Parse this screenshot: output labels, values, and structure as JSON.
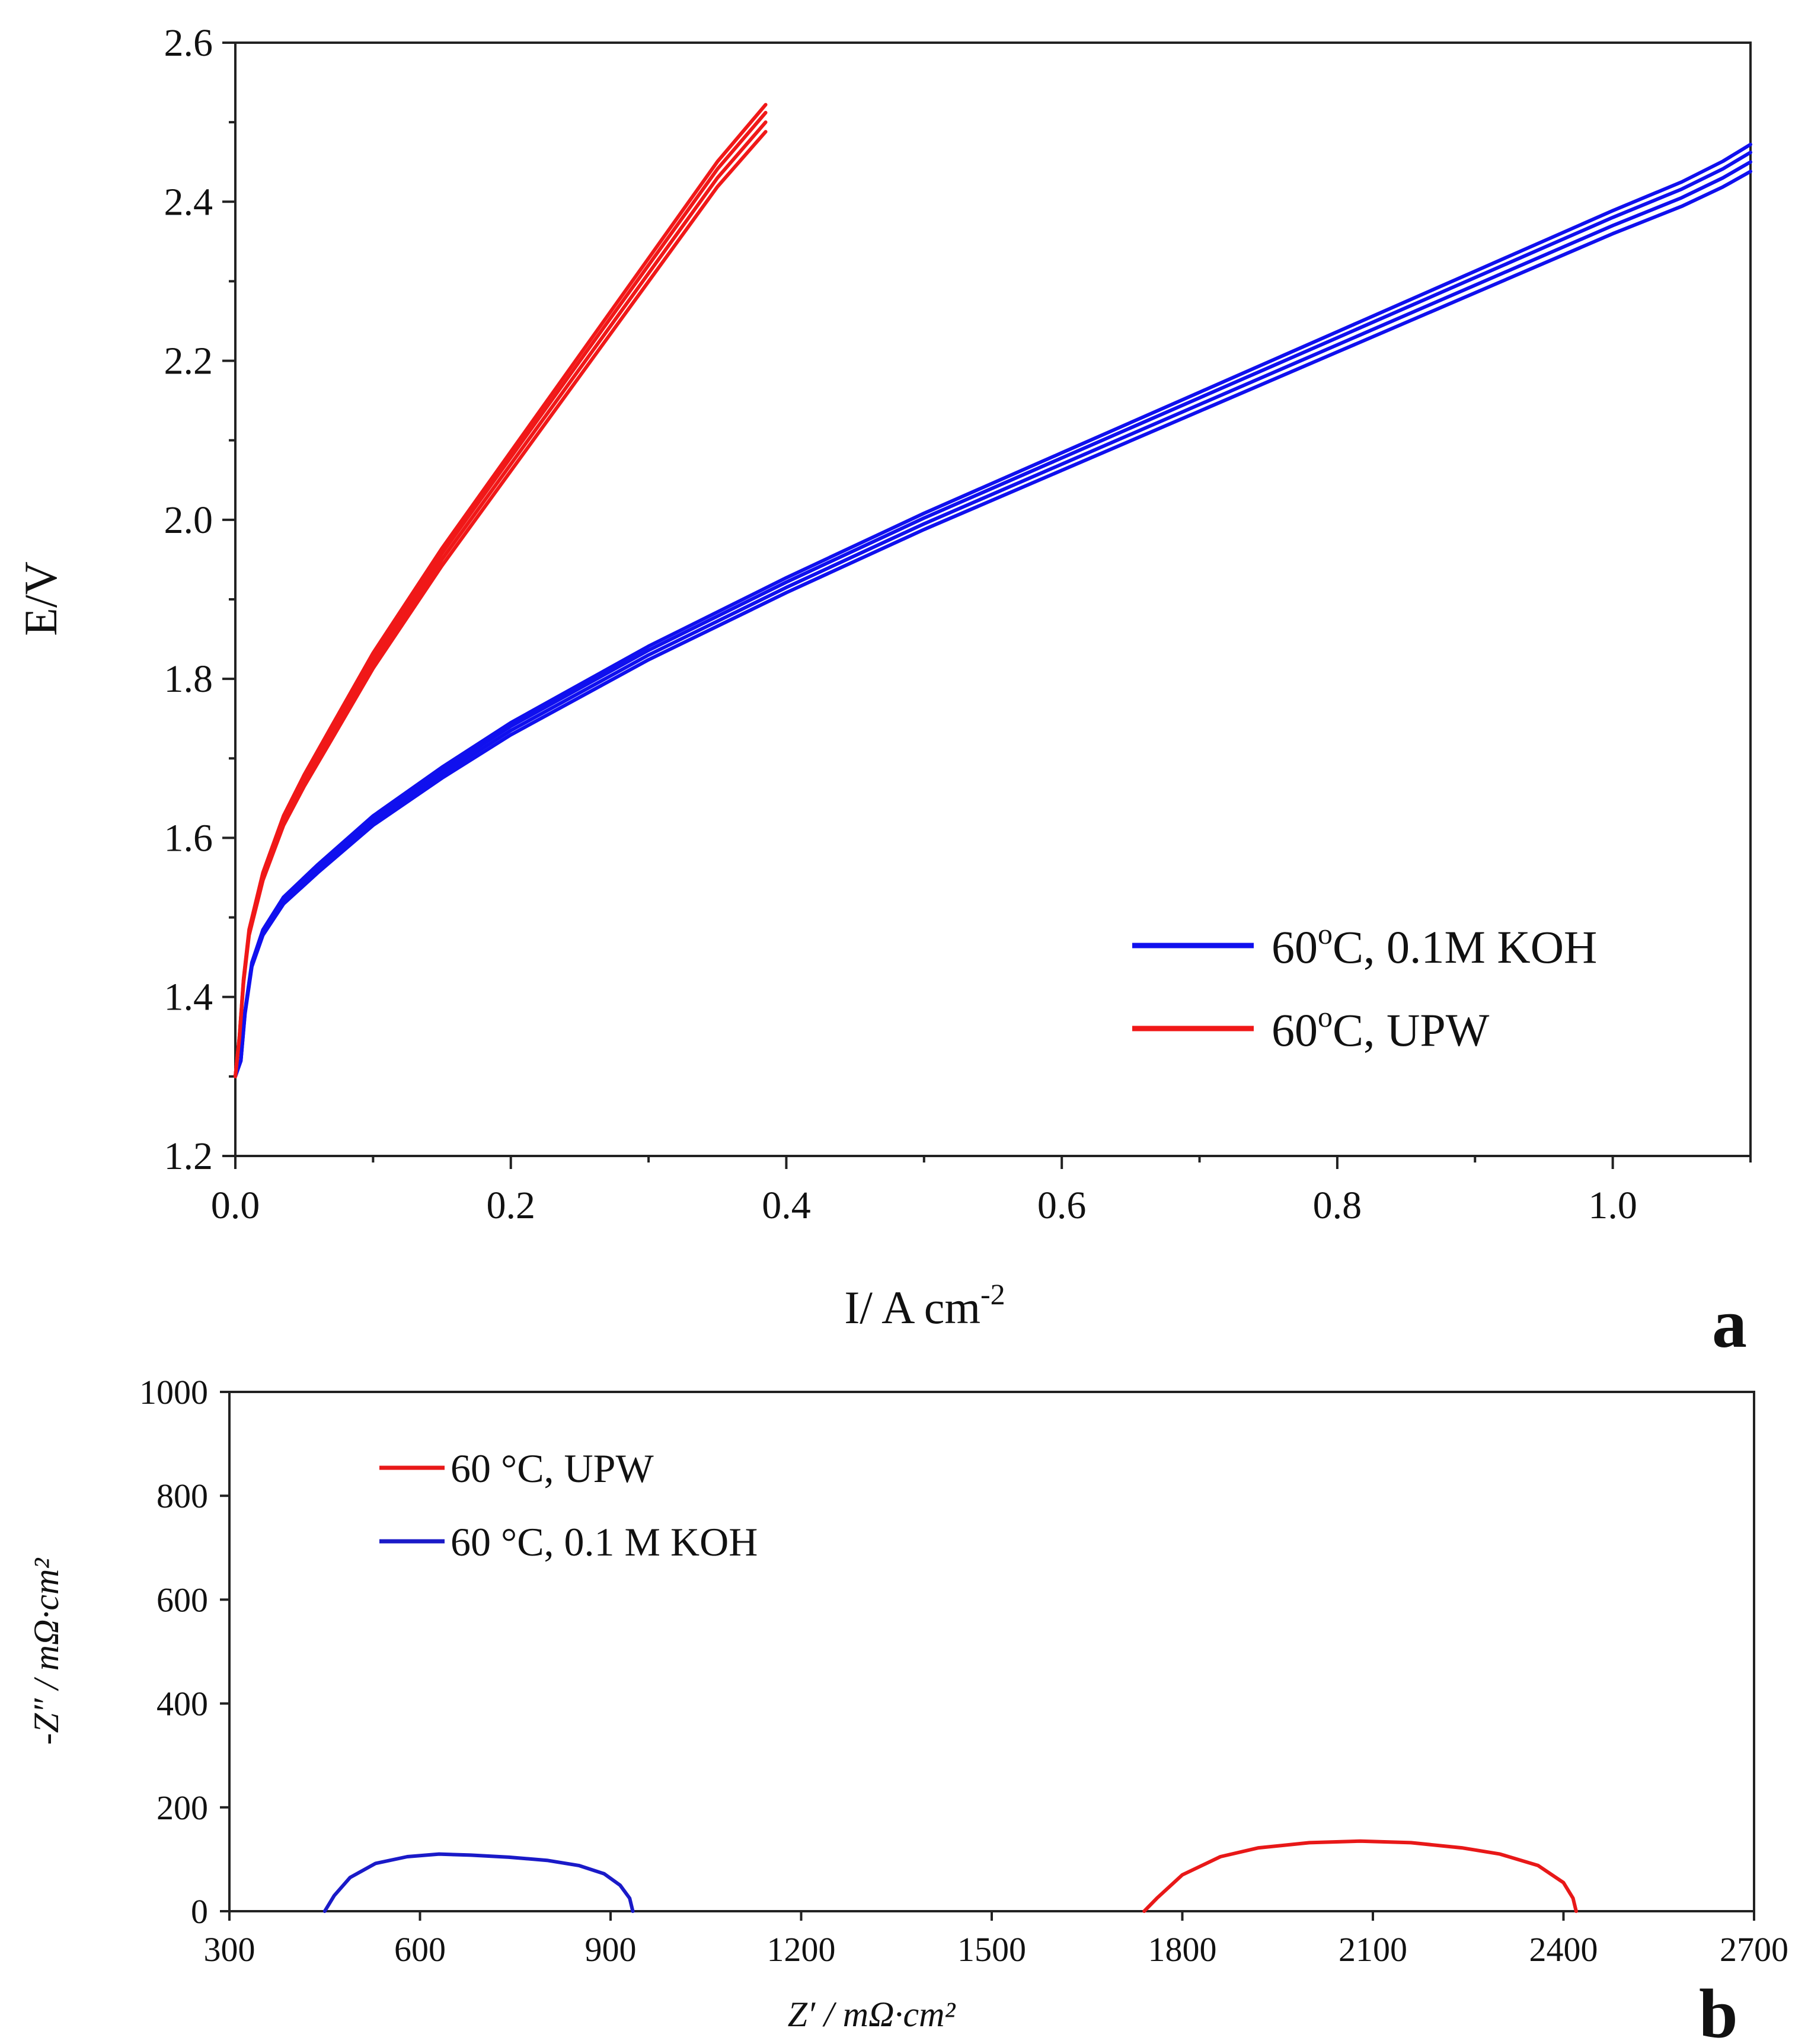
{
  "chart_data": [
    {
      "type": "line",
      "panel_label": "a",
      "xlabel": "I/ A cm",
      "xlabel_superscript": "-2",
      "ylabel": "E/V",
      "xlim": [
        0.0,
        1.1
      ],
      "ylim": [
        1.2,
        2.6
      ],
      "x_ticks": [
        "0.0",
        "0.2",
        "0.4",
        "0.6",
        "0.8",
        "1.0"
      ],
      "x_tick_values": [
        0.0,
        0.2,
        0.4,
        0.6,
        0.8,
        1.0
      ],
      "y_ticks": [
        "1.2",
        "1.4",
        "1.6",
        "1.8",
        "2.0",
        "2.2",
        "2.4",
        "2.6"
      ],
      "y_tick_values": [
        1.2,
        1.4,
        1.6,
        1.8,
        2.0,
        2.2,
        2.4,
        2.6
      ],
      "legend_position": "lower-right",
      "series": [
        {
          "name": "60oC, 0.1M KOH",
          "legend_main": "60",
          "legend_sup": "o",
          "legend_rest": "C, 0.1M KOH",
          "color": "#1010ee",
          "x": [
            0.0,
            0.004,
            0.007,
            0.012,
            0.02,
            0.035,
            0.06,
            0.1,
            0.15,
            0.2,
            0.3,
            0.4,
            0.5,
            0.6,
            0.7,
            0.8,
            0.9,
            1.0,
            1.05,
            1.08,
            1.1
          ],
          "y": [
            1.3,
            1.32,
            1.38,
            1.44,
            1.48,
            1.52,
            1.56,
            1.62,
            1.68,
            1.735,
            1.83,
            1.915,
            1.995,
            2.07,
            2.145,
            2.22,
            2.295,
            2.37,
            2.405,
            2.43,
            2.45
          ]
        },
        {
          "name": "60oC, UPW",
          "legend_main": "60",
          "legend_sup": "o",
          "legend_rest": "C, UPW",
          "color": "#f01818",
          "x": [
            0.0,
            0.003,
            0.006,
            0.01,
            0.02,
            0.035,
            0.05,
            0.07,
            0.1,
            0.15,
            0.2,
            0.25,
            0.3,
            0.35,
            0.385
          ],
          "y": [
            1.3,
            1.35,
            1.42,
            1.48,
            1.55,
            1.62,
            1.67,
            1.73,
            1.82,
            1.95,
            2.07,
            2.19,
            2.31,
            2.43,
            2.5
          ]
        }
      ]
    },
    {
      "type": "line",
      "panel_label": "b",
      "xlabel": "Z′ / mΩ·cm²",
      "ylabel": "-Z″ / mΩ·cm²",
      "xlim": [
        300,
        2700
      ],
      "ylim": [
        0,
        1000
      ],
      "x_ticks": [
        "300",
        "600",
        "900",
        "1200",
        "1500",
        "1800",
        "2100",
        "2400",
        "2700"
      ],
      "x_tick_values": [
        300,
        600,
        900,
        1200,
        1500,
        1800,
        2100,
        2400,
        2700
      ],
      "y_ticks": [
        "0",
        "200",
        "400",
        "600",
        "800",
        "1000"
      ],
      "y_tick_values": [
        0,
        200,
        400,
        600,
        800,
        1000
      ],
      "legend_position": "upper-left",
      "series": [
        {
          "name": "60 °C, UPW",
          "color": "#e81818",
          "x": [
            1740,
            1760,
            1800,
            1860,
            1920,
            2000,
            2080,
            2160,
            2240,
            2300,
            2360,
            2400,
            2415,
            2420
          ],
          "y": [
            0,
            25,
            70,
            105,
            122,
            132,
            135,
            132,
            122,
            110,
            88,
            55,
            25,
            0
          ]
        },
        {
          "name": "60 °C, 0.1 M KOH",
          "color": "#1a1ac8",
          "x": [
            450,
            465,
            490,
            530,
            580,
            630,
            680,
            740,
            800,
            850,
            890,
            915,
            930,
            935
          ],
          "y": [
            0,
            30,
            65,
            92,
            105,
            110,
            108,
            104,
            98,
            88,
            72,
            50,
            25,
            0
          ]
        }
      ]
    }
  ]
}
